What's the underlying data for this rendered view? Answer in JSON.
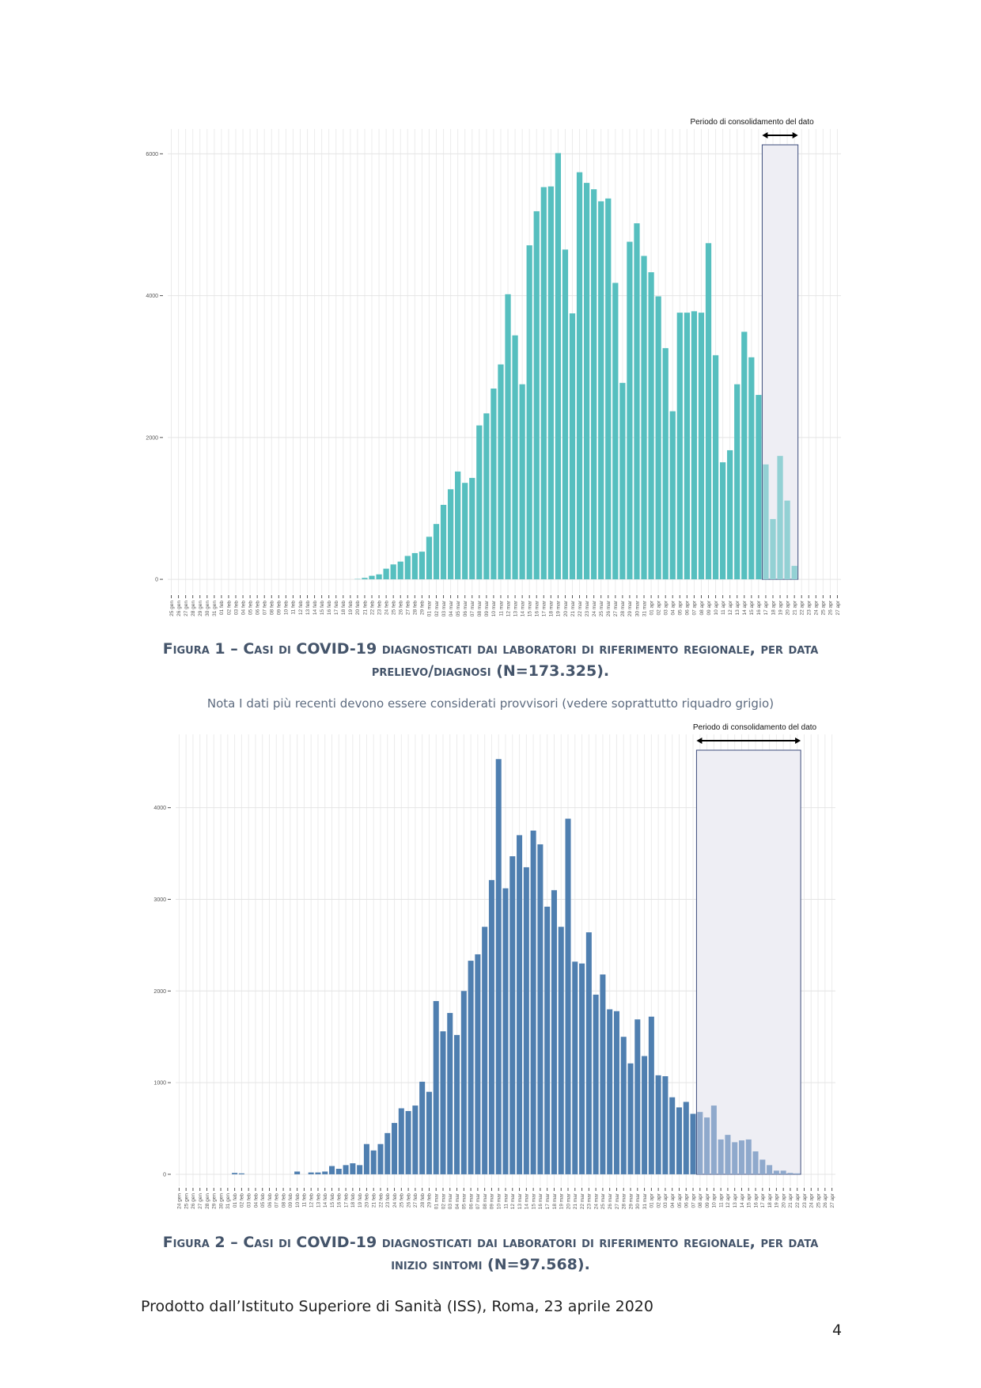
{
  "chart_data": [
    {
      "type": "bar",
      "categories": [
        "25 gen",
        "26 gen",
        "27 gen",
        "28 gen",
        "29 gen",
        "30 gen",
        "31 gen",
        "01 feb",
        "02 feb",
        "03 feb",
        "04 feb",
        "05 feb",
        "06 feb",
        "07 feb",
        "08 feb",
        "09 feb",
        "10 feb",
        "11 feb",
        "12 feb",
        "13 feb",
        "14 feb",
        "15 feb",
        "16 feb",
        "17 feb",
        "18 feb",
        "19 feb",
        "20 feb",
        "21 feb",
        "22 feb",
        "23 feb",
        "24 feb",
        "25 feb",
        "26 feb",
        "27 feb",
        "28 feb",
        "29 feb",
        "01 mar",
        "02 mar",
        "03 mar",
        "04 mar",
        "05 mar",
        "06 mar",
        "07 mar",
        "08 mar",
        "09 mar",
        "10 mar",
        "11 mar",
        "12 mar",
        "13 mar",
        "14 mar",
        "15 mar",
        "16 mar",
        "17 mar",
        "18 mar",
        "19 mar",
        "20 mar",
        "21 mar",
        "22 mar",
        "23 mar",
        "24 mar",
        "25 mar",
        "26 mar",
        "27 mar",
        "28 mar",
        "29 mar",
        "30 mar",
        "31 mar",
        "01 apr",
        "02 apr",
        "03 apr",
        "04 apr",
        "05 apr",
        "06 apr",
        "07 apr",
        "08 apr",
        "09 apr",
        "10 apr",
        "11 apr",
        "12 apr",
        "13 apr",
        "14 apr",
        "15 apr",
        "16 apr",
        "17 apr",
        "18 apr",
        "19 apr",
        "20 apr",
        "21 apr",
        "22 apr",
        "23 apr",
        "24 apr",
        "25 apr",
        "26 apr",
        "27 apr"
      ],
      "values": [
        0,
        0,
        0,
        0,
        0,
        0,
        0,
        0,
        0,
        0,
        0,
        0,
        0,
        0,
        0,
        0,
        0,
        0,
        0,
        0,
        0,
        0,
        0,
        0,
        0,
        0,
        5,
        20,
        50,
        70,
        150,
        210,
        250,
        330,
        370,
        390,
        600,
        780,
        1050,
        1270,
        1520,
        1360,
        1430,
        2170,
        2340,
        2690,
        3030,
        4020,
        3440,
        2750,
        4710,
        5190,
        5530,
        5540,
        6010,
        4650,
        3750,
        5740,
        5590,
        5500,
        5330,
        5370,
        4180,
        2770,
        4760,
        5020,
        4560,
        4330,
        3990,
        3260,
        2370,
        3760,
        3760,
        3780,
        3760,
        4740,
        3160,
        1650,
        1820,
        2750,
        3490,
        3130,
        2600,
        1620,
        850,
        1740,
        1110,
        190,
        0,
        0,
        0,
        0,
        0,
        0
      ],
      "color": "#56bfbf",
      "shaded_color": "#93d1d4",
      "shaded_range": [
        "17 apr",
        "21 apr"
      ],
      "annotation": "Periodo di consolidamento del dato",
      "ylim": [
        -200,
        6350
      ],
      "yticks": [
        0,
        2000,
        4000,
        6000
      ],
      "grid": true,
      "caption": "Figura 1 – Casi di COVID-19 diagnosticati dai laboratori di riferimento regionale, per data prelievo/diagnosi (N=173.325).",
      "note": "Nota I dati più recenti devono essere considerati provvisori (vedere soprattutto riquadro grigio)"
    },
    {
      "type": "bar",
      "categories": [
        "24 gen",
        "25 gen",
        "26 gen",
        "27 gen",
        "28 gen",
        "29 gen",
        "30 gen",
        "31 gen",
        "01 feb",
        "02 feb",
        "03 feb",
        "04 feb",
        "05 feb",
        "06 feb",
        "07 feb",
        "08 feb",
        "09 feb",
        "10 feb",
        "11 feb",
        "12 feb",
        "13 feb",
        "14 feb",
        "15 feb",
        "16 feb",
        "17 feb",
        "18 feb",
        "19 feb",
        "20 feb",
        "21 feb",
        "22 feb",
        "23 feb",
        "24 feb",
        "25 feb",
        "26 feb",
        "27 feb",
        "28 feb",
        "29 feb",
        "01 mar",
        "02 mar",
        "03 mar",
        "04 mar",
        "05 mar",
        "06 mar",
        "07 mar",
        "08 mar",
        "09 mar",
        "10 mar",
        "11 mar",
        "12 mar",
        "13 mar",
        "14 mar",
        "15 mar",
        "16 mar",
        "17 mar",
        "18 mar",
        "19 mar",
        "20 mar",
        "21 mar",
        "22 mar",
        "23 mar",
        "24 mar",
        "25 mar",
        "26 mar",
        "27 mar",
        "28 mar",
        "29 mar",
        "30 mar",
        "31 mar",
        "01 apr",
        "02 apr",
        "03 apr",
        "04 apr",
        "05 apr",
        "06 apr",
        "07 apr",
        "08 apr",
        "09 apr",
        "10 apr",
        "11 apr",
        "12 apr",
        "13 apr",
        "14 apr",
        "15 apr",
        "16 apr",
        "17 apr",
        "18 apr",
        "19 apr",
        "20 apr",
        "21 apr",
        "22 apr",
        "23 apr",
        "24 apr",
        "25 apr",
        "26 apr",
        "27 apr"
      ],
      "values": [
        0,
        0,
        0,
        0,
        0,
        0,
        0,
        0,
        15,
        10,
        0,
        0,
        0,
        0,
        0,
        0,
        0,
        30,
        0,
        20,
        20,
        30,
        90,
        60,
        100,
        120,
        100,
        330,
        260,
        330,
        450,
        560,
        720,
        690,
        750,
        1010,
        900,
        1890,
        1560,
        1760,
        1520,
        2000,
        2330,
        2400,
        2700,
        3210,
        4530,
        3120,
        3470,
        3700,
        3350,
        3750,
        3600,
        2920,
        3100,
        2700,
        3880,
        2320,
        2300,
        2640,
        1960,
        2180,
        1800,
        1780,
        1500,
        1210,
        1690,
        1290,
        1720,
        1080,
        1070,
        840,
        730,
        790,
        660,
        680,
        620,
        750,
        380,
        430,
        350,
        370,
        380,
        250,
        160,
        100,
        40,
        40,
        15,
        10,
        0,
        0,
        0,
        0,
        0
      ],
      "color": "#4f7fb0",
      "shaded_color": "#8fa9cc",
      "shaded_range": [
        "08 apr",
        "22 apr"
      ],
      "annotation": "Periodo di consolidamento del dato",
      "ylim": [
        -130,
        4800
      ],
      "yticks": [
        0,
        1000,
        2000,
        3000,
        4000
      ],
      "grid": true,
      "caption": "Figura 2 – Casi di COVID-19 diagnosticati dai laboratori di riferimento regionale, per data inizio sintomi (N=97.568)."
    }
  ],
  "footer": "Prodotto dall’Istituto Superiore di Sanità (ISS), Roma, 23 aprile 2020",
  "page_number": 4
}
